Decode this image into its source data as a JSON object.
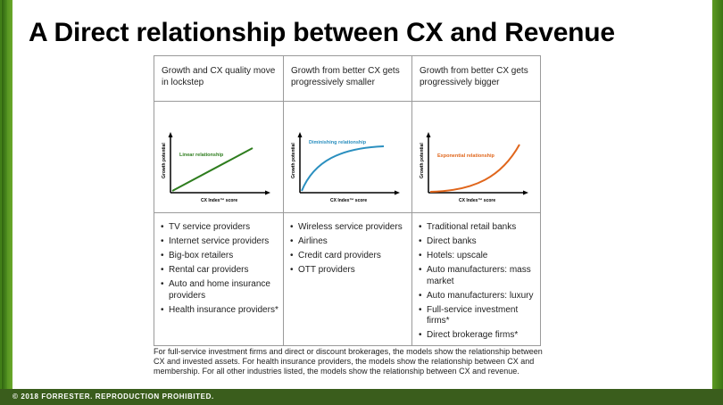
{
  "slide": {
    "title": "A Direct relationship between CX and Revenue",
    "footer": "© 2018 FORRESTER. REPRODUCTION PROHIBITED."
  },
  "columns": [
    {
      "header": "Growth and CX quality move in lockstep",
      "chart": {
        "label": "Linear relationship",
        "ylabel": "Growth potential",
        "xlabel": "CX Index™ score",
        "color": "#2e7d1e"
      },
      "items": [
        "TV service providers",
        "Internet service providers",
        "Big-box retailers",
        "Rental car providers",
        "Auto and home insurance providers",
        "Health insurance providers*"
      ]
    },
    {
      "header": "Growth from better CX gets progressively smaller",
      "chart": {
        "label": "Diminishing relationship",
        "ylabel": "Growth potential",
        "xlabel": "CX Index™ score",
        "color": "#2a8fbf"
      },
      "items": [
        "Wireless service providers",
        "Airlines",
        "Credit card providers",
        "OTT providers"
      ]
    },
    {
      "header": "Growth from better CX gets progressively bigger",
      "chart": {
        "label": "Exponential relationship",
        "ylabel": "Growth potential",
        "xlabel": "CX Index™ score",
        "color": "#e0661c"
      },
      "items": [
        "Traditional retail banks",
        "Direct banks",
        "Hotels: upscale",
        "Auto manufacturers: mass market",
        "Auto manufacturers: luxury",
        "Full-service investment firms*",
        "Direct brokerage firms*"
      ]
    }
  ],
  "footnote": "For full-service investment firms and direct or discount brokerages, the models show the relationship between CX and invested assets. For health insurance providers, the models show the relationship between CX and membership. For all other industries listed, the models show the relationship between CX and revenue."
}
